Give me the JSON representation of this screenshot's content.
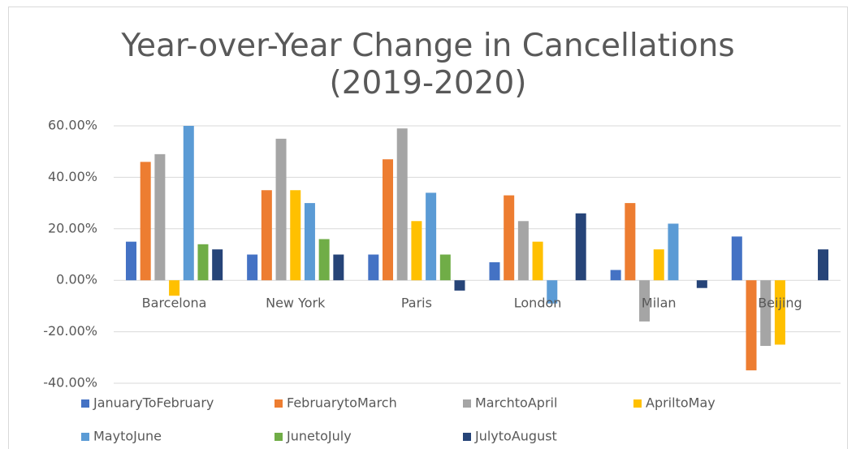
{
  "chart_data": {
    "type": "bar",
    "title": "Year-over-Year Change in Cancellations (2019-2020)",
    "categories": [
      "Barcelona",
      "New York",
      "Paris",
      "London",
      "Milan",
      "Beijing"
    ],
    "series": [
      {
        "name": "JanuaryToFebruary",
        "color": "#4472c4",
        "values": [
          15,
          10,
          10,
          7,
          4,
          17
        ]
      },
      {
        "name": "FebruarytoMarch",
        "color": "#ed7d31",
        "values": [
          46,
          35,
          47,
          33,
          30,
          -35
        ]
      },
      {
        "name": "MarchtoApril",
        "color": "#a5a5a5",
        "values": [
          49,
          55,
          59,
          23,
          -16,
          -25.5
        ]
      },
      {
        "name": "ApriltoMay",
        "color": "#ffc000",
        "values": [
          -6,
          35,
          23,
          15,
          12,
          -25
        ]
      },
      {
        "name": "MaytoJune",
        "color": "#5b9bd5",
        "values": [
          60,
          30,
          34,
          -9,
          22,
          0
        ]
      },
      {
        "name": "JunetoJuly",
        "color": "#70ad47",
        "values": [
          14,
          16,
          10,
          0,
          0,
          0
        ]
      },
      {
        "name": "JulytoAugust",
        "color": "#264478",
        "values": [
          12,
          10,
          -4,
          26,
          -3,
          12
        ]
      }
    ],
    "ylim": [
      -40,
      60
    ],
    "yticks": [
      {
        "value": -40,
        "label": "-40.00%"
      },
      {
        "value": -20,
        "label": "-20.00%"
      },
      {
        "value": 0,
        "label": "0.00%"
      },
      {
        "value": 20,
        "label": "20.00%"
      },
      {
        "value": 40,
        "label": "40.00%"
      },
      {
        "value": 60,
        "label": "60.00%"
      }
    ],
    "grid": true
  }
}
